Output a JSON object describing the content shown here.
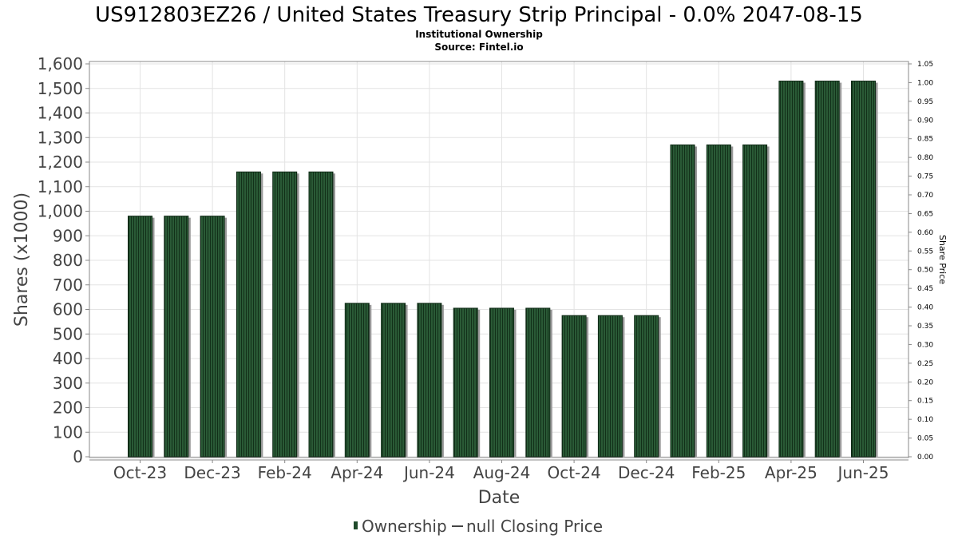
{
  "chart_data": {
    "type": "bar",
    "title": "US912803EZ26 / United States Treasury Strip Principal - 0.0% 2047-08-15",
    "subtitle": "Institutional Ownership",
    "source": "Source: Fintel.io",
    "xlabel": "Date",
    "ylabel": "Shares (x1000)",
    "y2label": "Share Price",
    "ylim": [
      0,
      1600
    ],
    "y2lim": [
      0,
      1.05
    ],
    "yticks": [
      "0",
      "100",
      "200",
      "300",
      "400",
      "500",
      "600",
      "700",
      "800",
      "900",
      "1,000",
      "1,100",
      "1,200",
      "1,300",
      "1,400",
      "1,500",
      "1,600"
    ],
    "y2ticks": [
      "0.00",
      "0.05",
      "0.10",
      "0.15",
      "0.20",
      "0.25",
      "0.30",
      "0.35",
      "0.40",
      "0.45",
      "0.50",
      "0.55",
      "0.60",
      "0.65",
      "0.70",
      "0.75",
      "0.80",
      "0.85",
      "0.90",
      "0.95",
      "1.00",
      "1.05"
    ],
    "xtick_labels": [
      "Oct-23",
      "Dec-23",
      "Feb-24",
      "Apr-24",
      "Jun-24",
      "Aug-24",
      "Oct-24",
      "Dec-24",
      "Feb-25",
      "Apr-25",
      "Jun-25"
    ],
    "xtick_positions": [
      1,
      3,
      5,
      7,
      9,
      11,
      13,
      15,
      17,
      19,
      21
    ],
    "values": [
      980,
      980,
      980,
      1160,
      1160,
      1160,
      625,
      625,
      625,
      605,
      605,
      605,
      575,
      575,
      575,
      1270,
      1270,
      1270,
      1530,
      1530,
      1530
    ],
    "grid": true,
    "legend_position": "bottom",
    "series": [
      {
        "name": "Ownership",
        "color": "#1f4a2a",
        "kind": "bar"
      },
      {
        "name": "null Closing Price",
        "color": "#444444",
        "kind": "line"
      }
    ]
  }
}
